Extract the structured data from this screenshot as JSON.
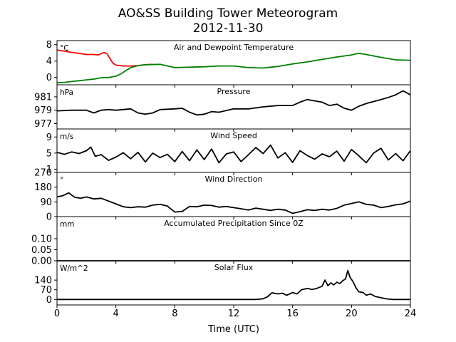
{
  "title": "AO&SS Building Tower Meteorogram",
  "subtitle": "2012-11-30",
  "xlabel": "Time (UTC)",
  "x_ticks": [
    "0",
    "4",
    "8",
    "12",
    "16",
    "20",
    "24"
  ],
  "x_tick_values": [
    0,
    4,
    8,
    12,
    16,
    20,
    24
  ],
  "xlim": [
    0,
    24
  ],
  "colors": {
    "temperature": "#ff0000",
    "dewpoint": "#007f00",
    "default": "#000000"
  },
  "chart_data": [
    {
      "type": "line",
      "title": "Air and Dewpoint Temperature",
      "unit": "°C",
      "ylim": [
        -1.8,
        9
      ],
      "y_ticks": [
        "8",
        "4",
        "0"
      ],
      "y_tick_values": [
        8,
        4,
        0
      ],
      "series": [
        {
          "color_key": "temperature",
          "x": [
            0,
            0.5,
            1,
            1.5,
            2,
            2.5,
            2.8,
            3.2,
            3.4,
            3.6,
            3.8,
            4.0,
            4.5,
            5.0,
            5.5,
            6.0,
            6.5
          ],
          "y": [
            6.7,
            6.4,
            6.1,
            5.9,
            5.6,
            5.6,
            5.5,
            6.1,
            5.8,
            4.6,
            3.5,
            3.0,
            2.8,
            2.8,
            2.9,
            3.1,
            3.2
          ]
        },
        {
          "color_key": "dewpoint",
          "x": [
            0,
            0.5,
            1,
            1.5,
            2,
            2.5,
            3,
            3.5,
            4,
            4.3,
            4.6,
            5,
            5.5,
            6,
            7,
            8,
            9,
            10,
            11,
            12,
            13,
            14,
            15,
            16,
            17,
            18,
            19,
            20,
            20.5,
            21,
            22,
            23,
            24
          ],
          "y": [
            -1.3,
            -1.2,
            -1.0,
            -0.8,
            -0.6,
            -0.4,
            -0.1,
            0.0,
            0.3,
            0.8,
            1.5,
            2.4,
            2.9,
            3.1,
            3.2,
            2.4,
            2.5,
            2.6,
            2.8,
            2.8,
            2.4,
            2.3,
            2.7,
            3.3,
            3.8,
            4.4,
            5.0,
            5.5,
            5.9,
            5.6,
            4.9,
            4.3,
            4.2
          ]
        }
      ]
    },
    {
      "type": "line",
      "title": "Pressure",
      "unit": "hPa",
      "ylim": [
        976.2,
        982.8
      ],
      "y_ticks": [
        "981",
        "979",
        "977"
      ],
      "y_tick_values": [
        981,
        979,
        977
      ],
      "series": [
        {
          "color_key": "default",
          "x": [
            0,
            1,
            2,
            2.5,
            3,
            3.5,
            4,
            5,
            5.5,
            6,
            6.5,
            7,
            8,
            8.5,
            9,
            9.5,
            10,
            10.5,
            11,
            12,
            13,
            14,
            15,
            16,
            16.5,
            17,
            18,
            18.5,
            19,
            19.5,
            20,
            20.5,
            21,
            22,
            22.5,
            23,
            23.5,
            24
          ],
          "y": [
            978.9,
            979.0,
            979.0,
            978.6,
            979.0,
            979.1,
            979.0,
            979.2,
            978.6,
            978.4,
            978.6,
            979.1,
            979.2,
            979.3,
            978.7,
            978.3,
            978.4,
            978.8,
            978.7,
            979.2,
            979.2,
            979.5,
            979.7,
            979.7,
            980.2,
            980.6,
            980.2,
            979.7,
            979.9,
            979.3,
            979.0,
            979.6,
            980.0,
            980.6,
            980.9,
            981.3,
            981.9,
            981.3
          ]
        }
      ]
    },
    {
      "type": "line",
      "title": "Wind Speed",
      "unit": "m/s",
      "ylim": [
        0.2,
        11
      ],
      "y_ticks": [
        "9",
        "5",
        "1"
      ],
      "y_tick_values": [
        9,
        5,
        1
      ],
      "series": [
        {
          "color_key": "default",
          "x": [
            0,
            0.5,
            1,
            1.5,
            2,
            2.3,
            2.6,
            3,
            3.5,
            4,
            4.5,
            5,
            5.5,
            6,
            6.5,
            7,
            7.5,
            8,
            8.5,
            9,
            9.5,
            10,
            10.5,
            11,
            11.5,
            12,
            12.5,
            13,
            13.5,
            14,
            14.5,
            15,
            15.5,
            16,
            16.5,
            17,
            17.5,
            18,
            18.5,
            19,
            19.5,
            20,
            20.5,
            21,
            21.5,
            22,
            22.5,
            23,
            23.5,
            24
          ],
          "y": [
            5.2,
            4.7,
            5.3,
            4.9,
            5.6,
            6.5,
            4.2,
            4.6,
            3.2,
            4.0,
            5.1,
            3.6,
            5.2,
            2.8,
            5.0,
            3.9,
            4.7,
            2.9,
            5.4,
            3.1,
            5.8,
            3.4,
            6.0,
            2.6,
            4.8,
            5.3,
            2.9,
            4.6,
            6.4,
            4.9,
            7.0,
            3.8,
            5.1,
            2.7,
            5.6,
            4.4,
            3.5,
            4.8,
            4.1,
            5.5,
            3.0,
            5.9,
            4.3,
            2.6,
            5.0,
            6.2,
            3.3,
            4.9,
            3.1,
            5.6
          ]
        }
      ]
    },
    {
      "type": "line",
      "title": "Wind Direction",
      "unit": "°",
      "ylim": [
        0,
        270
      ],
      "y_ticks": [
        "270",
        "180",
        "90",
        "0"
      ],
      "y_tick_values": [
        270,
        180,
        90,
        0
      ],
      "series": [
        {
          "color_key": "default",
          "x": [
            0,
            0.4,
            0.8,
            1.2,
            1.6,
            2,
            2.5,
            3,
            3.5,
            4,
            4.5,
            5,
            5.5,
            6,
            6.5,
            7,
            7.5,
            8,
            8.5,
            9,
            9.5,
            10,
            10.5,
            11,
            11.5,
            12,
            12.5,
            13,
            13.5,
            14,
            14.5,
            15,
            15.5,
            16,
            16.5,
            17,
            17.5,
            18,
            18.5,
            19,
            19.5,
            20,
            20.5,
            21,
            21.5,
            22,
            22.5,
            23,
            23.5,
            24
          ],
          "y": [
            120,
            128,
            145,
            118,
            112,
            120,
            108,
            112,
            95,
            78,
            60,
            55,
            60,
            58,
            70,
            75,
            64,
            28,
            32,
            62,
            60,
            70,
            68,
            58,
            62,
            55,
            48,
            40,
            52,
            45,
            38,
            45,
            40,
            20,
            30,
            42,
            38,
            45,
            40,
            50,
            70,
            80,
            90,
            75,
            70,
            55,
            62,
            72,
            78,
            95
          ]
        }
      ]
    },
    {
      "type": "line",
      "title": "Accumulated Precipitation Since 0Z",
      "unit": "mm",
      "ylim": [
        0,
        0.2
      ],
      "y_ticks": [
        "0.10",
        "0.05",
        "0.00"
      ],
      "y_tick_values": [
        0.1,
        0.05,
        0
      ],
      "series": [
        {
          "color_key": "default",
          "x": [
            0,
            24
          ],
          "y": [
            0,
            0
          ]
        }
      ]
    },
    {
      "type": "line",
      "title": "Solar Flux",
      "unit": "W/m^2",
      "ylim": [
        -40,
        280
      ],
      "y_ticks": [
        "140",
        "70",
        "0"
      ],
      "y_tick_values": [
        140,
        70,
        0
      ],
      "series": [
        {
          "color_key": "default",
          "x": [
            0,
            13.5,
            14,
            14.3,
            14.6,
            15,
            15.3,
            15.6,
            16,
            16.3,
            16.6,
            17,
            17.3,
            17.6,
            18,
            18.2,
            18.4,
            18.6,
            18.8,
            19,
            19.2,
            19.4,
            19.6,
            19.75,
            19.9,
            20.1,
            20.3,
            20.5,
            20.8,
            21,
            21.3,
            21.6,
            22,
            22.4,
            22.8,
            24
          ],
          "y": [
            0,
            0,
            5,
            20,
            48,
            40,
            45,
            30,
            50,
            40,
            70,
            80,
            72,
            78,
            95,
            140,
            100,
            120,
            105,
            125,
            115,
            135,
            150,
            210,
            160,
            130,
            85,
            55,
            50,
            30,
            40,
            22,
            12,
            4,
            0,
            0
          ]
        }
      ]
    }
  ]
}
